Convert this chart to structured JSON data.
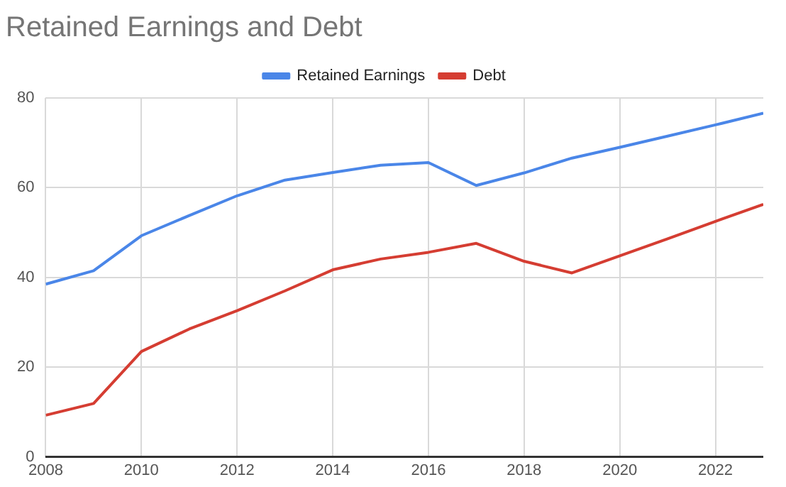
{
  "chart_data": {
    "type": "line",
    "title": "Retained Earnings and Debt",
    "x": [
      2008,
      2009,
      2010,
      2011,
      2012,
      2013,
      2014,
      2015,
      2016,
      2017,
      2018,
      2019,
      2020,
      2021,
      2022,
      2023
    ],
    "series": [
      {
        "name": "Retained Earnings",
        "color": "#4a86e8",
        "values": [
          38.5,
          41.5,
          49.3,
          53.8,
          58.2,
          61.7,
          63.4,
          65.0,
          65.6,
          60.5,
          63.3,
          66.6,
          69.0,
          71.5,
          74.0,
          76.6
        ]
      },
      {
        "name": "Debt",
        "color": "#d53d32",
        "values": [
          9.3,
          11.9,
          23.5,
          28.5,
          32.6,
          37.0,
          41.7,
          44.1,
          45.6,
          47.6,
          43.6,
          41.0,
          44.8,
          48.6,
          52.5,
          56.3
        ]
      }
    ],
    "xlim": [
      2008,
      2023
    ],
    "xticks": [
      2008,
      2010,
      2012,
      2014,
      2016,
      2018,
      2020,
      2022
    ],
    "ylim": [
      0,
      80
    ],
    "yticks": [
      0,
      20,
      40,
      60,
      80
    ],
    "grid": true,
    "legend": "top",
    "marker": "none",
    "line_style": "solid"
  }
}
